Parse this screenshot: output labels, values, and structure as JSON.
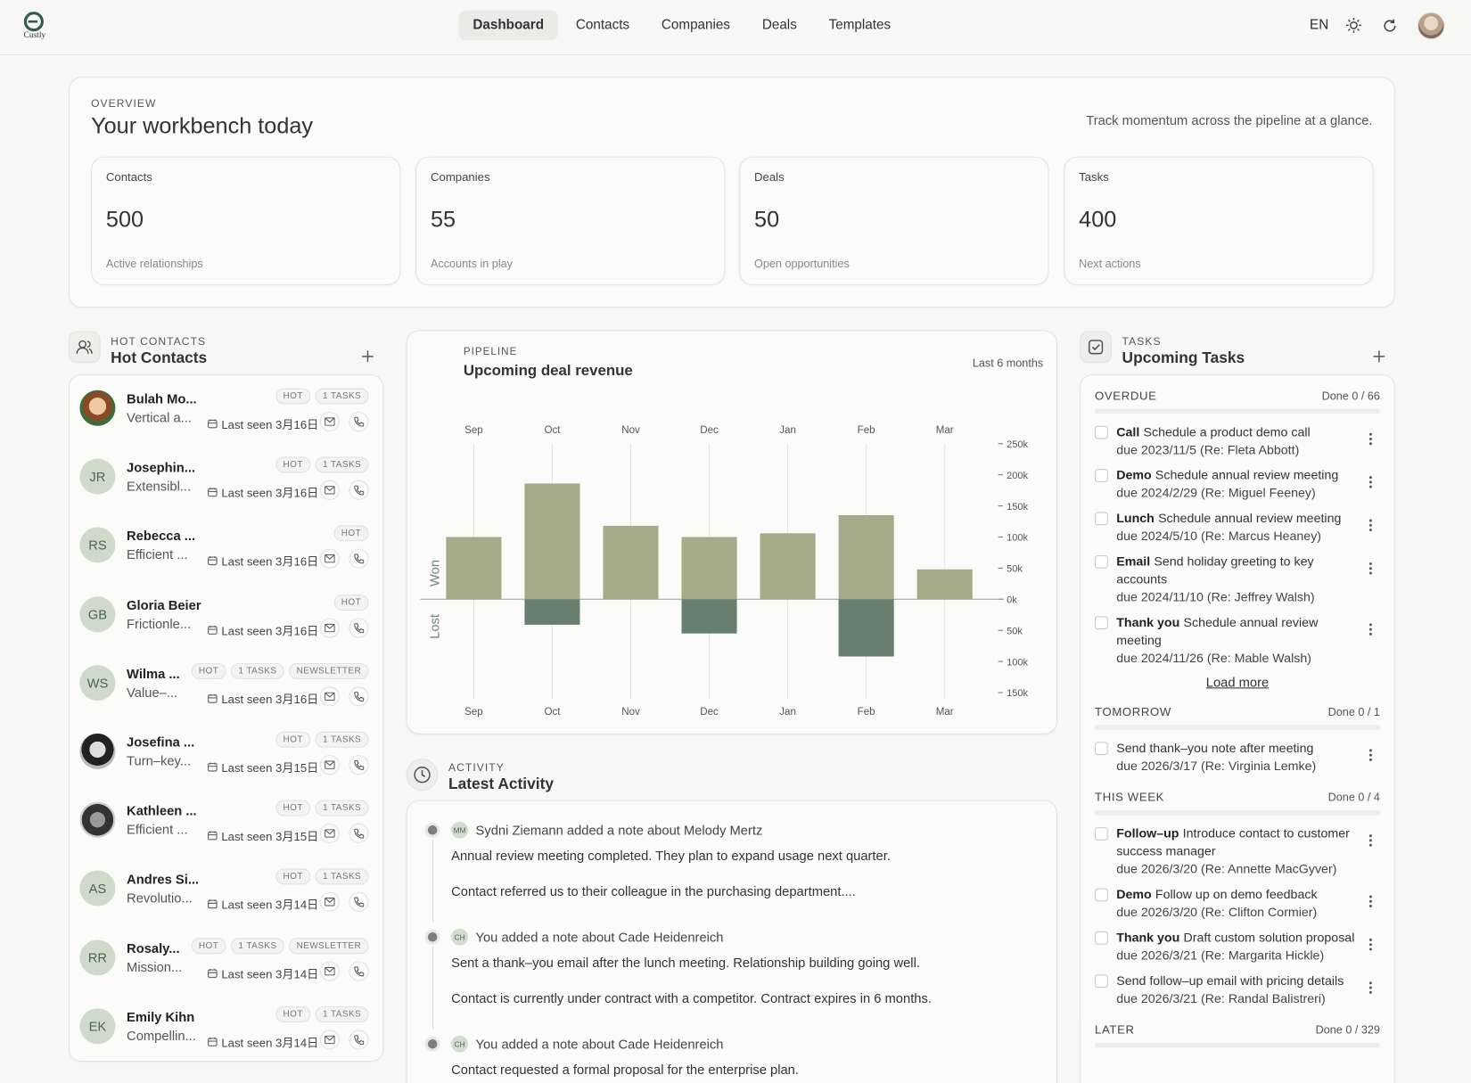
{
  "nav": {
    "logo": "Custly",
    "links": [
      "Dashboard",
      "Contacts",
      "Companies",
      "Deals",
      "Templates"
    ],
    "language": "EN"
  },
  "overview": {
    "eyebrow": "OVERVIEW",
    "title": "Your workbench today",
    "tagline": "Track momentum across the pipeline at a glance.",
    "stats": [
      {
        "label": "Contacts",
        "value": 500,
        "caption": "Active relationships"
      },
      {
        "label": "Companies",
        "value": 55,
        "caption": "Accounts in play"
      },
      {
        "label": "Deals",
        "value": 50,
        "caption": "Open opportunities"
      },
      {
        "label": "Tasks",
        "value": 400,
        "caption": "Next actions"
      }
    ]
  },
  "hot_contacts": {
    "eyebrow": "HOT CONTACTS",
    "title": "Hot Contacts",
    "contacts": [
      {
        "name": "Bulah Mo...",
        "subtitle": "Vertical a...",
        "tags": [
          "HOT",
          "1 TASKS"
        ],
        "last_seen": "Last seen 3月16日"
      },
      {
        "name": "Josephin...",
        "subtitle": "Extensibl...",
        "initials": "JR",
        "tags": [
          "HOT",
          "1 TASKS"
        ],
        "last_seen": "Last seen 3月16日"
      },
      {
        "name": "Rebecca ...",
        "subtitle": "Efficient ...",
        "initials": "RS",
        "tags": [
          "HOT"
        ],
        "last_seen": "Last seen 3月16日"
      },
      {
        "name": "Gloria Beier",
        "subtitle": "Frictionle...",
        "initials": "GB",
        "tags": [
          "HOT"
        ],
        "last_seen": "Last seen 3月16日"
      },
      {
        "name": "Wilma ...",
        "subtitle": "Value–...",
        "initials": "WS",
        "tags": [
          "HOT",
          "1 TASKS",
          "NEWSLETTER"
        ],
        "last_seen": "Last seen 3月16日"
      },
      {
        "name": "Josefina ...",
        "subtitle": "Turn–key...",
        "tags": [
          "HOT",
          "1 TASKS"
        ],
        "last_seen": "Last seen 3月15日"
      },
      {
        "name": "Kathleen ...",
        "subtitle": "Efficient ...",
        "tags": [
          "HOT",
          "1 TASKS"
        ],
        "last_seen": "Last seen 3月15日"
      },
      {
        "name": "Andres Si...",
        "subtitle": "Revolutio...",
        "initials": "AS",
        "tags": [
          "HOT",
          "1 TASKS"
        ],
        "last_seen": "Last seen 3月14日"
      },
      {
        "name": "Rosaly...",
        "subtitle": "Mission...",
        "initials": "RR",
        "tags": [
          "HOT",
          "1 TASKS",
          "NEWSLETTER"
        ],
        "last_seen": "Last seen 3月14日"
      },
      {
        "name": "Emily Kihn",
        "subtitle": "Compellin...",
        "initials": "EK",
        "tags": [
          "HOT",
          "1 TASKS"
        ],
        "last_seen": "Last seen 3月14日"
      }
    ]
  },
  "pipeline": {
    "eyebrow": "PIPELINE",
    "title": "Upcoming deal revenue",
    "range": "Last 6 months"
  },
  "chart_data": {
    "type": "bar",
    "categories": [
      "Sep",
      "Oct",
      "Nov",
      "Dec",
      "Jan",
      "Feb",
      "Mar"
    ],
    "series": [
      {
        "name": "Won",
        "color": "#a7a988",
        "values": [
          100000,
          186000,
          118000,
          100000,
          106000,
          135000,
          48000
        ]
      },
      {
        "name": "Lost",
        "color": "#67806f",
        "values": [
          0,
          -41000,
          0,
          -55000,
          0,
          -92000,
          0
        ]
      }
    ],
    "ylim": [
      -160000,
      250000
    ],
    "yticks": [
      {
        "value": 250000,
        "label": "250k"
      },
      {
        "value": 200000,
        "label": "200k"
      },
      {
        "value": 150000,
        "label": "150k"
      },
      {
        "value": 100000,
        "label": "100k"
      },
      {
        "value": 50000,
        "label": "50k"
      },
      {
        "value": 0,
        "label": "0k"
      },
      {
        "value": -50000,
        "label": "50k"
      },
      {
        "value": -100000,
        "label": "100k"
      },
      {
        "value": -150000,
        "label": "150k"
      }
    ]
  },
  "activity": {
    "eyebrow": "ACTIVITY",
    "title": "Latest Activity",
    "items": [
      {
        "initials": "MM",
        "summary": "Sydni Ziemann added a note about Melody Mertz",
        "lines": [
          "Annual review meeting completed. They plan to expand usage next quarter.",
          "Contact referred us to their colleague in the purchasing department...."
        ]
      },
      {
        "initials": "CH",
        "summary": "You added a note about Cade Heidenreich",
        "lines": [
          "Sent a thank–you email after the lunch meeting. Relationship building going well.",
          "Contact is currently under contract with a competitor. Contract expires in 6 months."
        ]
      },
      {
        "initials": "CH",
        "summary": "You added a note about Cade Heidenreich",
        "lines": [
          "Contact requested a formal proposal for the enterprise plan."
        ]
      }
    ]
  },
  "tasks": {
    "eyebrow": "TASKS",
    "title": "Upcoming Tasks",
    "load_more": "Load more",
    "groups": [
      {
        "name": "OVERDUE",
        "done": "Done 0 / 66",
        "tasks": [
          {
            "kind": "Call",
            "text": "Schedule a product demo call",
            "due": "due 2023/11/5 (Re: Fleta Abbott)"
          },
          {
            "kind": "Demo",
            "text": "Schedule annual review meeting",
            "due": "due 2024/2/29 (Re: Miguel Feeney)"
          },
          {
            "kind": "Lunch",
            "text": "Schedule annual review meeting",
            "due": "due 2024/5/10 (Re: Marcus Heaney)"
          },
          {
            "kind": "Email",
            "text": "Send holiday greeting to key accounts",
            "due": "due 2024/11/10 (Re: Jeffrey Walsh)"
          },
          {
            "kind": "Thank you",
            "text": "Schedule annual review meeting",
            "due": "due 2024/11/26 (Re: Mable Walsh)"
          }
        ]
      },
      {
        "name": "TOMORROW",
        "done": "Done 0 / 1",
        "tasks": [
          {
            "text": "Send thank–you note after meeting",
            "due": "due 2026/3/17 (Re: Virginia Lemke)"
          }
        ]
      },
      {
        "name": "THIS WEEK",
        "done": "Done 0 / 4",
        "tasks": [
          {
            "kind": "Follow–up",
            "text": "Introduce contact to customer success manager",
            "due": "due 2026/3/20 (Re: Annette MacGyver)"
          },
          {
            "kind": "Demo",
            "text": "Follow up on demo feedback",
            "due": "due 2026/3/20 (Re: Clifton Cormier)"
          },
          {
            "kind": "Thank you",
            "text": "Draft custom solution proposal",
            "due": "due 2026/3/21 (Re: Margarita Hickle)"
          },
          {
            "text": "Send follow–up email with pricing details",
            "due": "due 2026/3/21 (Re: Randal Balistreri)"
          }
        ]
      },
      {
        "name": "LATER",
        "done": "Done 0 / 329",
        "tasks": []
      }
    ]
  }
}
